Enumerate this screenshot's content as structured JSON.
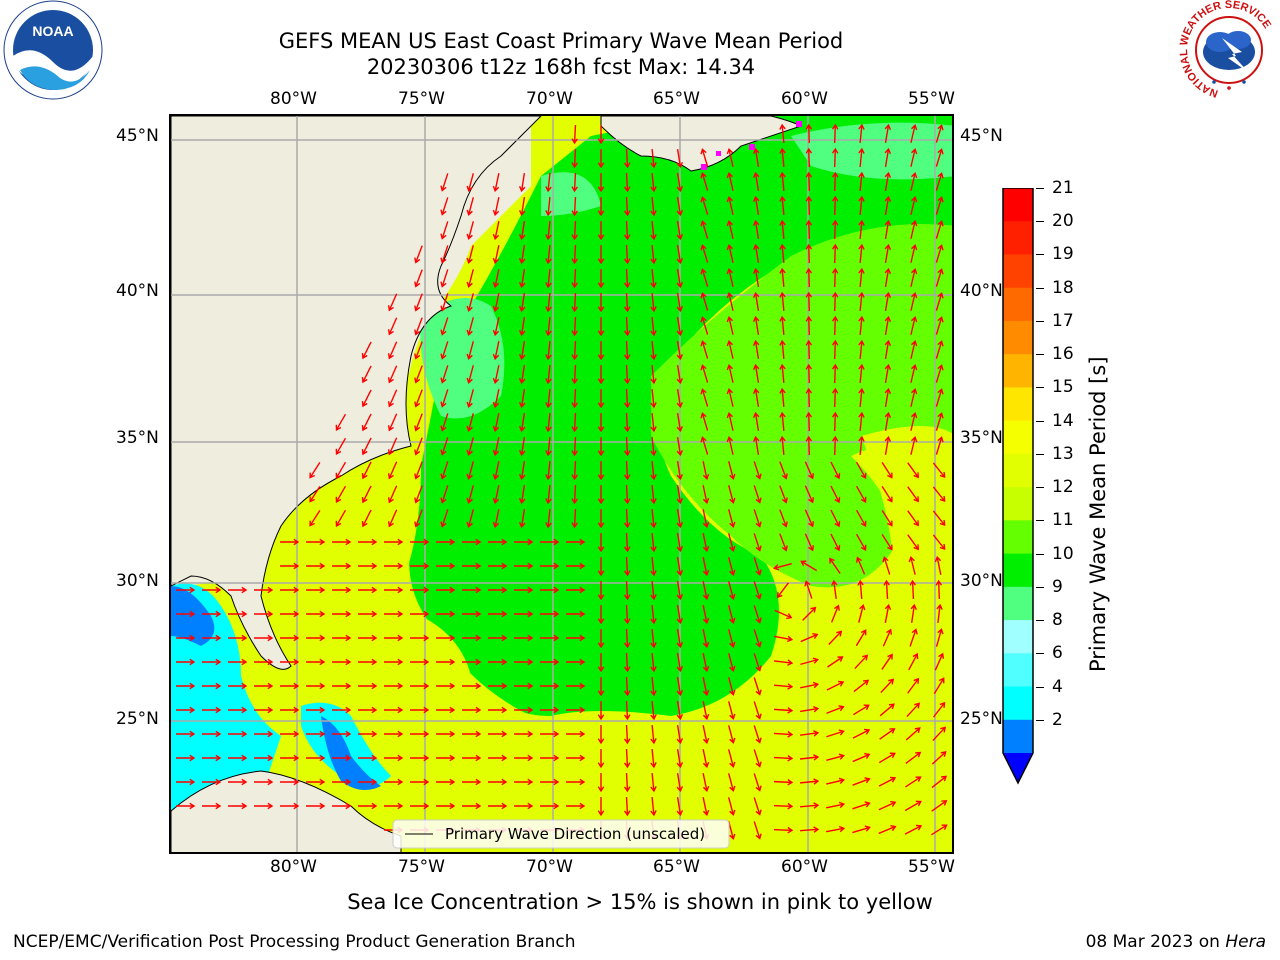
{
  "header": {
    "title_line1": "GEFS MEAN US East Coast Primary Wave Mean Period",
    "title_line2": "20230306 t12z 168h fcst   Max: 14.34"
  },
  "logos": {
    "noaa_text": "NOAA",
    "nws_ring_text": "NATIONAL WEATHER SERVICE"
  },
  "map": {
    "lon_labels": [
      "80°W",
      "75°W",
      "70°W",
      "65°W",
      "60°W",
      "55°W"
    ],
    "lat_labels": [
      "45°N",
      "40°N",
      "35°N",
      "30°N",
      "25°N"
    ],
    "legend_label": "Primary Wave Direction (unscaled)"
  },
  "colorbar": {
    "label": "Primary Wave Mean Period [s]",
    "ticks": [
      "21",
      "20",
      "19",
      "18",
      "17",
      "16",
      "15",
      "14",
      "13",
      "12",
      "11",
      "10",
      "9",
      "8",
      "6",
      "4",
      "2"
    ],
    "colors": [
      "#ff0000",
      "#ff2000",
      "#ff4200",
      "#ff6a00",
      "#ff8c00",
      "#ffb400",
      "#ffe600",
      "#f5ff00",
      "#e1ff00",
      "#c8ff00",
      "#64ff00",
      "#00ee00",
      "#50ff80",
      "#a0ffff",
      "#50ffff",
      "#00ffff",
      "#0080ff",
      "#0000ff"
    ]
  },
  "notes": {
    "sea_ice": "Sea Ice Concentration > 15% is shown in pink to yellow"
  },
  "footer": {
    "left": "NCEP/EMC/Verification Post Processing Product Generation Branch",
    "date": "08 Mar 2023 on",
    "machine": "Hera"
  }
}
